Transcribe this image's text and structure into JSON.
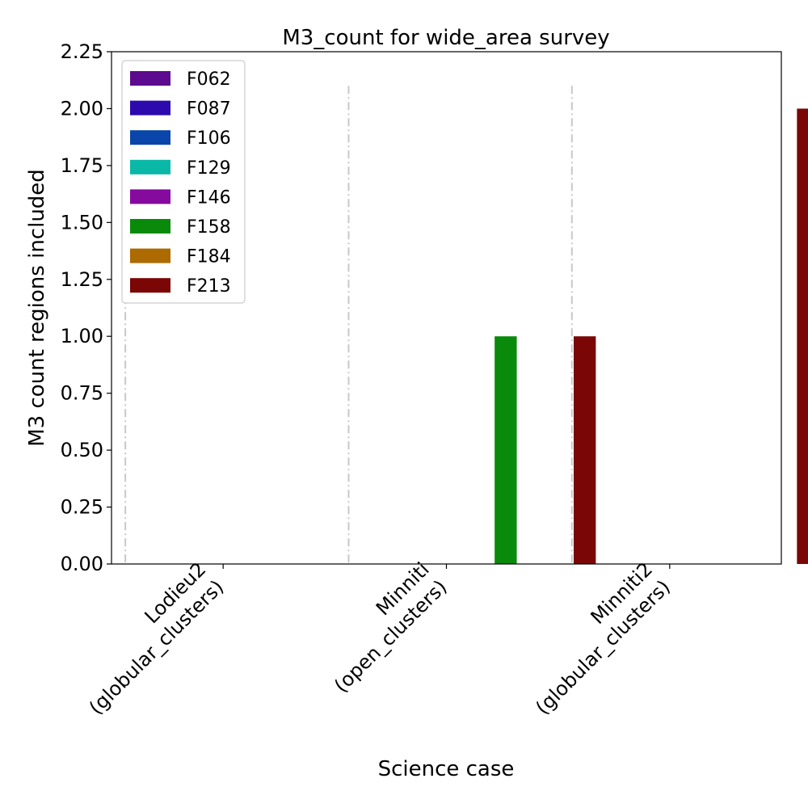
{
  "chart_data": {
    "type": "bar",
    "title": "M3_count for wide_area survey",
    "xlabel": "Science case",
    "ylabel": "M3 count regions included",
    "ylim": [
      0,
      2.25
    ],
    "yticks": [
      "0.00",
      "0.25",
      "0.50",
      "0.75",
      "1.00",
      "1.25",
      "1.50",
      "1.75",
      "2.00",
      "2.25"
    ],
    "categories": [
      [
        "Lodieu2",
        "(globular_clusters)"
      ],
      [
        "Minniti",
        "(open_clusters)"
      ],
      [
        "Minniti2",
        "(globular_clusters)"
      ]
    ],
    "series": [
      {
        "name": "F062",
        "color": "#5c0a8e",
        "values": [
          0,
          0,
          0
        ]
      },
      {
        "name": "F087",
        "color": "#2d0aad",
        "values": [
          0,
          0,
          0
        ]
      },
      {
        "name": "F106",
        "color": "#0a46aa",
        "values": [
          0,
          0,
          0
        ]
      },
      {
        "name": "F129",
        "color": "#0ab8a8",
        "values": [
          0,
          0,
          0
        ]
      },
      {
        "name": "F146",
        "color": "#860a9e",
        "values": [
          0,
          0,
          0
        ]
      },
      {
        "name": "F158",
        "color": "#0a8a0a",
        "values": [
          0,
          1,
          0
        ]
      },
      {
        "name": "F184",
        "color": "#ad6a00",
        "values": [
          0,
          0,
          0
        ]
      },
      {
        "name": "F213",
        "color": "#7a0606",
        "values": [
          0,
          1,
          2
        ]
      }
    ],
    "legend_position": "top-left",
    "grid": false,
    "separator_style": "dash-dot grey vertical lines between categories"
  }
}
